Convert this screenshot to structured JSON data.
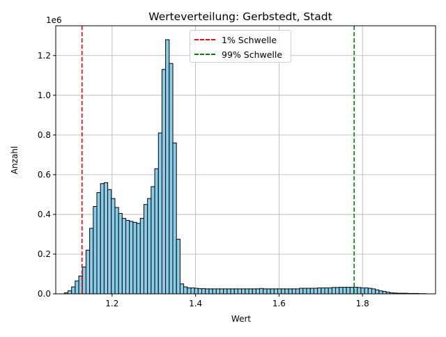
{
  "chart_data": {
    "type": "bar",
    "title": "Werteverteilung: Gerbstedt, Stadt",
    "xlabel": "Wert",
    "ylabel": "Anzahl",
    "y_offset_text": "1e6",
    "xlim": [
      1.065,
      1.975
    ],
    "ylim": [
      0,
      1.35
    ],
    "x_ticks": [
      1.2,
      1.4,
      1.6,
      1.8
    ],
    "x_tick_labels": [
      "1.2",
      "1.4",
      "1.6",
      "1.8"
    ],
    "y_ticks": [
      0,
      0.2,
      0.4,
      0.6,
      0.8,
      1.0,
      1.2
    ],
    "y_tick_labels": [
      "0.0",
      "0.2",
      "0.4",
      "0.6",
      "0.8",
      "1.0",
      "1.2"
    ],
    "grid": true,
    "legend_position": "top-center",
    "bar_color": "#87ceeb",
    "bar_edge_color": "#000000",
    "bin_width": 0.00867,
    "bin_starts": [
      1.0855,
      1.0942,
      1.1029,
      1.1115,
      1.1202,
      1.1289,
      1.1375,
      1.1462,
      1.1549,
      1.1635,
      1.1722,
      1.1809,
      1.1895,
      1.1982,
      1.2069,
      1.2155,
      1.2242,
      1.2329,
      1.2415,
      1.2502,
      1.2589,
      1.2675,
      1.2762,
      1.2849,
      1.2935,
      1.3022,
      1.3109,
      1.3195,
      1.3282,
      1.3369,
      1.3455,
      1.3542,
      1.3629,
      1.3715,
      1.3802,
      1.3889,
      1.3975,
      1.4062,
      1.4149,
      1.4235,
      1.4322,
      1.4409,
      1.4495,
      1.4582,
      1.4669,
      1.4755,
      1.4842,
      1.4929,
      1.5015,
      1.5102,
      1.5189,
      1.5275,
      1.5362,
      1.5449,
      1.5535,
      1.5622,
      1.5709,
      1.5795,
      1.5882,
      1.5969,
      1.6055,
      1.6142,
      1.6229,
      1.6315,
      1.6402,
      1.6489,
      1.6575,
      1.6662,
      1.6749,
      1.6835,
      1.6922,
      1.7009,
      1.7095,
      1.7182,
      1.7269,
      1.7355,
      1.7442,
      1.7529,
      1.7615,
      1.7702,
      1.7789,
      1.7875,
      1.7962,
      1.8049,
      1.8135,
      1.8222,
      1.8309,
      1.8395,
      1.8482,
      1.8569,
      1.8655,
      1.8742,
      1.8829,
      1.8915,
      1.9002,
      1.9089,
      1.9175,
      1.9262,
      1.9349,
      1.9435
    ],
    "values": [
      0.005,
      0.015,
      0.035,
      0.065,
      0.09,
      0.135,
      0.22,
      0.33,
      0.44,
      0.51,
      0.555,
      0.56,
      0.525,
      0.48,
      0.435,
      0.405,
      0.38,
      0.37,
      0.365,
      0.36,
      0.355,
      0.38,
      0.45,
      0.48,
      0.54,
      0.63,
      0.81,
      1.13,
      1.28,
      1.16,
      0.76,
      0.275,
      0.05,
      0.035,
      0.03,
      0.03,
      0.028,
      0.026,
      0.026,
      0.025,
      0.025,
      0.025,
      0.025,
      0.025,
      0.025,
      0.025,
      0.025,
      0.025,
      0.025,
      0.025,
      0.025,
      0.025,
      0.025,
      0.025,
      0.027,
      0.025,
      0.025,
      0.025,
      0.025,
      0.025,
      0.025,
      0.025,
      0.025,
      0.025,
      0.025,
      0.028,
      0.028,
      0.028,
      0.028,
      0.028,
      0.03,
      0.03,
      0.03,
      0.03,
      0.032,
      0.032,
      0.033,
      0.033,
      0.033,
      0.033,
      0.033,
      0.032,
      0.03,
      0.03,
      0.028,
      0.025,
      0.02,
      0.015,
      0.012,
      0.008,
      0.005,
      0.004,
      0.003,
      0.003,
      0.003,
      0.002,
      0.002,
      0.002,
      0.001,
      0.001
    ],
    "thresholds": [
      {
        "label": "1% Schwelle",
        "x": 1.128,
        "color": "#ff0000"
      },
      {
        "label": "99% Schwelle",
        "x": 1.78,
        "color": "#008000"
      }
    ]
  }
}
